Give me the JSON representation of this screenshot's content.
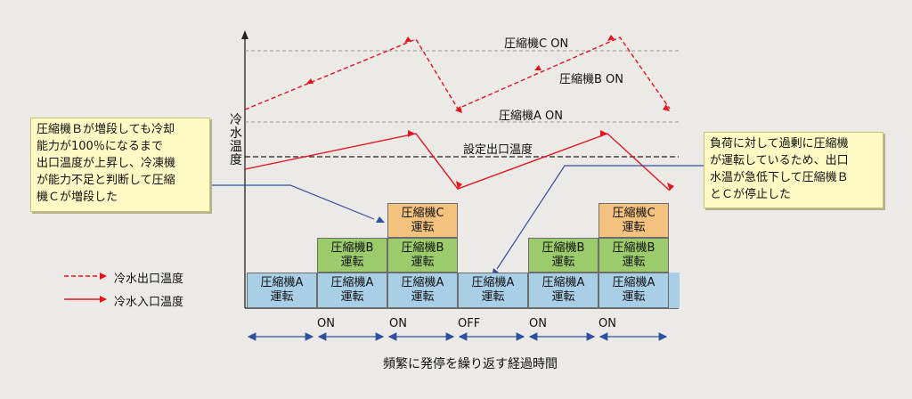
{
  "y_axis_label": [
    "冷",
    "水",
    "温",
    "度"
  ],
  "thresholds": {
    "c_on": "圧縮機C ON",
    "b_on": "圧縮機B ON",
    "a_on": "圧縮機A ON",
    "setpoint": "設定出口温度"
  },
  "note_left": [
    "圧縮機Ｂが増段しても冷却",
    "能力が100％になるまで",
    "出口温度が上昇し、冷凍機",
    "が能力不足と判断して圧縮",
    "機Ｃが増段した"
  ],
  "note_right": [
    "負荷に対して過剰に圧縮機",
    "が運転しているため、出口",
    "水温が急低下して圧縮機Ｂ",
    "とＣが停止した"
  ],
  "blocks": {
    "a_line1": "圧縮機A",
    "a_line2": "運転",
    "b_line1": "圧縮機B",
    "b_line2": "運転",
    "c_line1": "圧縮機C",
    "c_line2": "運転"
  },
  "timeline": [
    "ON",
    "ON",
    "OFF",
    "ON",
    "ON"
  ],
  "x_axis_label": "頻繁に発停を繰り返す経過時間",
  "legend": {
    "outlet": "冷水出口温度",
    "inlet": "冷水入口温度"
  },
  "colors": {
    "line": "#e4141e",
    "bg": "#eceae6",
    "block_a": "#a9cfe6",
    "block_b": "#9bcb6a",
    "block_c": "#f2c27e",
    "pointer": "#2f4f9f"
  }
}
